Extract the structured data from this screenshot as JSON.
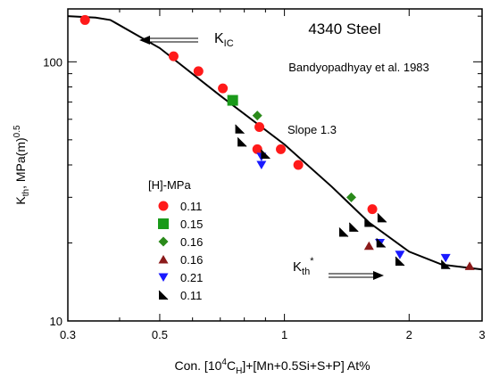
{
  "chart_data": {
    "type": "scatter",
    "title": "4340 Steel",
    "subtitle": "Bandyopadhyay et al. 1983",
    "xlabel": {
      "pre": "Con. [10",
      "sup": "4",
      "mid": "C",
      "sub": "H",
      "post": "]+[Mn+0.5Si+S+P] At%"
    },
    "ylabel": {
      "pre": "K",
      "sub": "th",
      "mid": ", MPa(m)",
      "sup": "0.5"
    },
    "x_scale": "log",
    "y_scale": "log",
    "xlim": [
      0.3,
      3
    ],
    "ylim": [
      10,
      160
    ],
    "x_ticks": [
      0.3,
      0.5,
      1,
      2,
      3
    ],
    "x_tick_labels": [
      "0.3",
      "0.5",
      "1",
      "2",
      "3"
    ],
    "y_ticks": [
      10,
      100
    ],
    "y_tick_labels": [
      "10",
      "100"
    ],
    "grid": false,
    "legend_title": "[H]-MPa",
    "legend_position": "center-left",
    "annotations": {
      "kic": {
        "main": "K",
        "sub": "IC"
      },
      "slope": "Slope 1.3",
      "kth": {
        "main": "K",
        "sub": "th",
        "sup": "*"
      }
    },
    "series": [
      {
        "name": "0.11",
        "marker": "circle",
        "color": "#ff1a1a",
        "points": [
          [
            0.33,
            145
          ],
          [
            0.54,
            105
          ],
          [
            0.62,
            92
          ],
          [
            0.71,
            79
          ],
          [
            0.87,
            56
          ],
          [
            0.86,
            46
          ],
          [
            0.98,
            46
          ],
          [
            1.08,
            40
          ],
          [
            1.63,
            27
          ]
        ]
      },
      {
        "name": "0.15",
        "marker": "square",
        "color": "#1a9a1a",
        "points": [
          [
            0.75,
            71
          ]
        ]
      },
      {
        "name": "0.16",
        "marker": "diamond",
        "color": "#2a8a1a",
        "points": [
          [
            0.86,
            62
          ],
          [
            1.45,
            30
          ]
        ]
      },
      {
        "name": "0.16",
        "marker": "triangle-up",
        "color": "#8b1a1a",
        "points": [
          [
            1.6,
            19.5
          ],
          [
            2.8,
            16.3
          ]
        ]
      },
      {
        "name": "0.21",
        "marker": "triangle-down",
        "color": "#1a1aff",
        "points": [
          [
            0.88,
            40
          ],
          [
            0.88,
            43
          ],
          [
            1.7,
            20
          ],
          [
            1.9,
            18
          ],
          [
            2.45,
            17.5
          ]
        ]
      },
      {
        "name": "0.11",
        "marker": "half-square",
        "color": "#000000",
        "points": [
          [
            0.78,
            55
          ],
          [
            0.79,
            49
          ],
          [
            0.9,
            44
          ],
          [
            1.39,
            22
          ],
          [
            1.47,
            23
          ],
          [
            1.6,
            24
          ],
          [
            1.72,
            25
          ],
          [
            1.71,
            20
          ],
          [
            1.9,
            17
          ],
          [
            2.45,
            16.5
          ]
        ]
      }
    ],
    "fit_curve": {
      "points": [
        [
          0.3,
          150
        ],
        [
          0.35,
          148
        ],
        [
          0.38,
          145
        ],
        [
          0.5,
          113
        ],
        [
          0.7,
          74
        ],
        [
          1.0,
          48
        ],
        [
          1.3,
          33
        ],
        [
          1.6,
          24
        ],
        [
          2.0,
          18.5
        ],
        [
          2.4,
          16.5
        ],
        [
          3.0,
          15.8
        ]
      ]
    }
  }
}
